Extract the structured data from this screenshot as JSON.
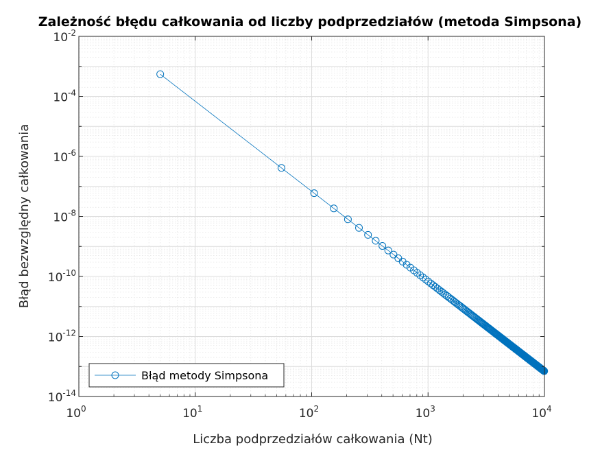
{
  "chart_data": {
    "type": "line",
    "title": "Zależność błędu całkowania od liczby podprzedziałów (metoda Simpsona)",
    "xlabel": "Liczba podprzedziałów całkowania (Nt)",
    "ylabel": "Błąd bezwzględny całkowania",
    "xscale": "log",
    "yscale": "log",
    "xlim": [
      1,
      10000
    ],
    "ylim": [
      1e-14,
      0.01
    ],
    "x_ticks": [
      {
        "base": "10",
        "exp": "0",
        "value": 1
      },
      {
        "base": "10",
        "exp": "1",
        "value": 10
      },
      {
        "base": "10",
        "exp": "2",
        "value": 100
      },
      {
        "base": "10",
        "exp": "3",
        "value": 1000
      },
      {
        "base": "10",
        "exp": "4",
        "value": 10000
      }
    ],
    "y_ticks": [
      {
        "base": "10",
        "exp": "-14",
        "value": 1e-14
      },
      {
        "base": "10",
        "exp": "-12",
        "value": 1e-12
      },
      {
        "base": "10",
        "exp": "-10",
        "value": 1e-10
      },
      {
        "base": "10",
        "exp": "-8",
        "value": 1e-08
      },
      {
        "base": "10",
        "exp": "-6",
        "value": 1e-06
      },
      {
        "base": "10",
        "exp": "-4",
        "value": 0.0001
      },
      {
        "base": "10",
        "exp": "-2",
        "value": 0.01
      }
    ],
    "grid": true,
    "minor_grid": true,
    "legend_position": "bottom-left",
    "series": [
      {
        "name": "Błąd metody Simpsona",
        "color": "#0072BD",
        "marker": "circle",
        "x_start": 5,
        "x_step": 50,
        "x_end": 9955,
        "y_at_first": 0.00055,
        "y_at_last": 7e-14,
        "convergence_order": 4,
        "note_points": [
          [
            5,
            0.00055
          ],
          [
            55,
            4.1e-07
          ],
          [
            105,
            6e-08
          ],
          [
            9955,
            7e-14
          ]
        ]
      }
    ]
  }
}
